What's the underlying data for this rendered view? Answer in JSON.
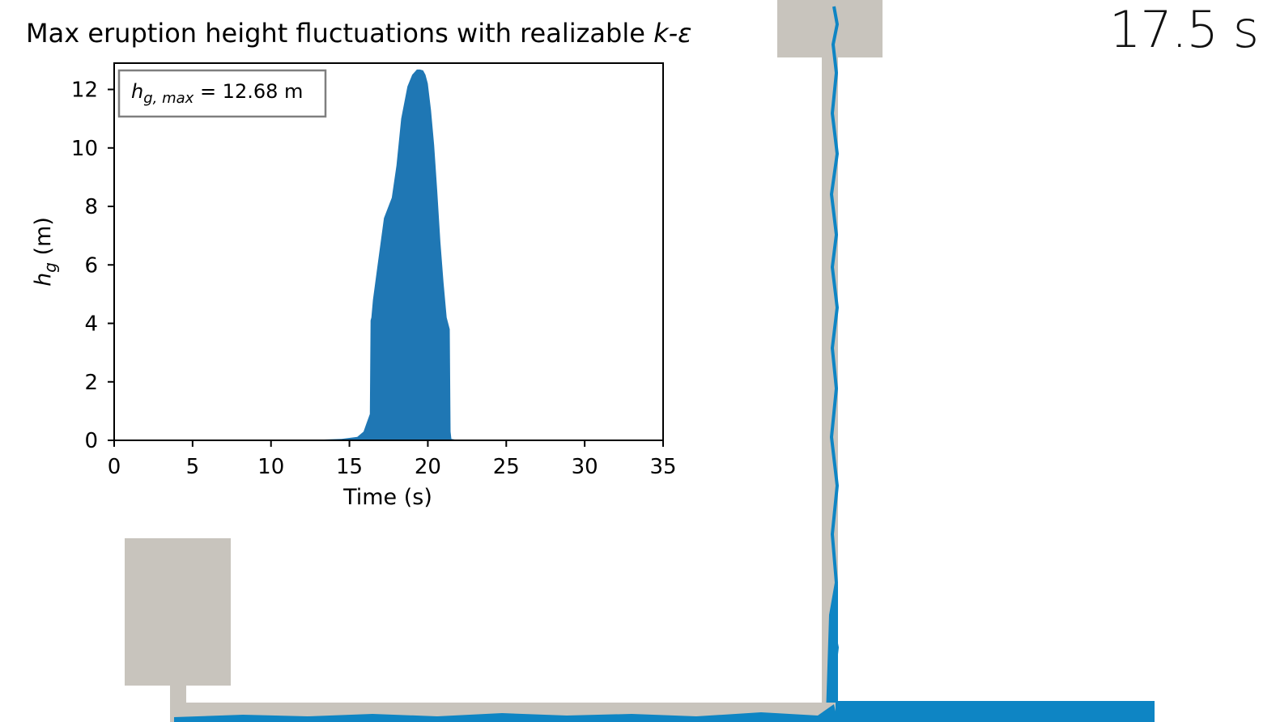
{
  "simulation": {
    "time_readout": "17.5 s"
  },
  "colors": {
    "water": "#1f77b4",
    "pipe_water": "#0e85c4",
    "wall": "#c8c4bd",
    "axis": "#000000",
    "legend_border": "#7f7f7f"
  },
  "chart_data": {
    "type": "area",
    "title": "Max eruption height fluctuations with realizable k-ε",
    "title_parts": {
      "text": "Max eruption height fluctuations with realizable ",
      "symbol": "k-ε"
    },
    "xlabel": "Time (s)",
    "ylabel": "h_g (m)",
    "ylabel_parts": {
      "sym": "h",
      "sub": "g",
      "unit": " (m)"
    },
    "xlim": [
      0,
      35
    ],
    "ylim": [
      0,
      12.9
    ],
    "xticks": [
      0,
      5,
      10,
      15,
      20,
      25,
      30,
      35
    ],
    "yticks": [
      0,
      2,
      4,
      6,
      8,
      10,
      12
    ],
    "grid": false,
    "legend_position": "top-left",
    "annotation": {
      "sym": "h",
      "sub": "g, max",
      "rest": " = 12.68 m"
    },
    "series": [
      {
        "x": [
          0,
          13,
          14.5,
          15.5,
          15.9,
          16.1,
          16.3,
          16.35,
          16.4,
          16.5,
          16.8,
          17.2,
          17.7,
          18.0,
          18.3,
          18.7,
          19.0,
          19.3,
          19.5,
          19.7,
          19.85,
          20.0,
          20.2,
          20.4,
          20.6,
          20.8,
          21.0,
          21.2,
          21.4,
          21.45,
          21.5,
          22,
          35
        ],
        "y": [
          0,
          0.02,
          0.05,
          0.12,
          0.3,
          0.6,
          0.9,
          4.1,
          4.2,
          4.8,
          6.0,
          7.6,
          8.3,
          9.4,
          11.0,
          12.1,
          12.5,
          12.68,
          12.68,
          12.65,
          12.5,
          12.2,
          11.3,
          10.1,
          8.5,
          6.8,
          5.4,
          4.2,
          3.8,
          0.3,
          0.05,
          0,
          0
        ]
      }
    ]
  }
}
